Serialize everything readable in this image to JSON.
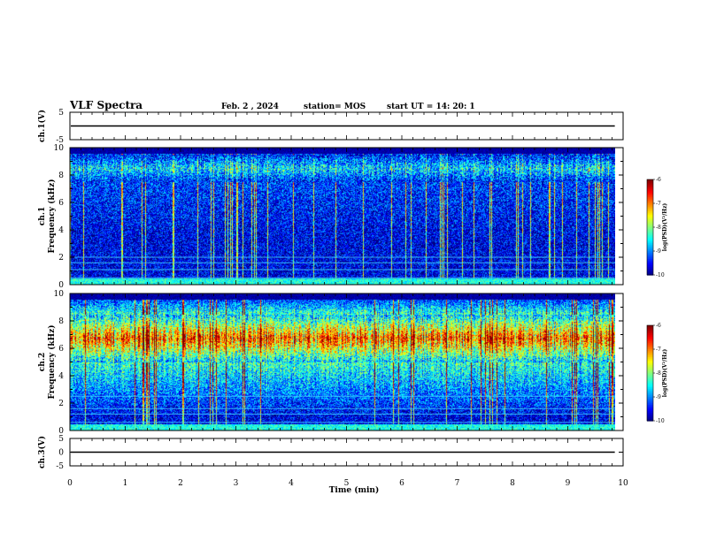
{
  "chart_data": {
    "type": "heatmap",
    "title": "VLF Spectra",
    "date": "Feb. 2  , 2024",
    "station": "station= MOS",
    "start_ut": "start  UT  =   14: 20: 1",
    "xlabel": "Time  (min)",
    "xlim": [
      0,
      10
    ],
    "x_ticks": [
      "0",
      "1",
      "2",
      "3",
      "4",
      "5",
      "6",
      "7",
      "8",
      "9",
      "10"
    ],
    "panels": [
      {
        "kind": "waveform",
        "ylabel": "ch.1(V)",
        "ylim": [
          -5,
          5
        ],
        "y_ticks": [
          "5",
          "-5"
        ],
        "baseline_value": 0
      },
      {
        "kind": "spectrogram",
        "channel": "ch.1",
        "ylabel": "Frequency (kHz)",
        "ylim": [
          0,
          10
        ],
        "y_ticks": [
          "0",
          "2",
          "4",
          "6",
          "8",
          "10"
        ],
        "data_extent_min": [
          0,
          9.85
        ],
        "emission_band_khz": [
          7.5,
          9.5
        ],
        "narrowband_lines_khz": [
          0.5,
          1.1,
          1.6,
          2.0
        ],
        "typical_log_psd": -9.2,
        "colorbar": {
          "label": "log(PSD)(V²/Hz)",
          "range": [
            -10,
            -6
          ],
          "ticks": [
            "-6",
            "-7",
            "-8",
            "-9",
            "-10"
          ]
        }
      },
      {
        "kind": "spectrogram",
        "channel": "ch.2",
        "ylabel": "Frequency (kHz)",
        "ylim": [
          0,
          10
        ],
        "y_ticks": [
          "0",
          "2",
          "4",
          "6",
          "8",
          "10"
        ],
        "data_extent_min": [
          0,
          9.85
        ],
        "emission_band_khz": [
          5.0,
          8.5
        ],
        "narrowband_lines_khz": [
          0.6,
          1.2,
          1.6,
          2.5
        ],
        "typical_log_psd": -7.0,
        "colorbar": {
          "label": "log(PSD)(V²/Hz)",
          "range": [
            -10,
            -6
          ],
          "ticks": [
            "-6",
            "-7",
            "-8",
            "-9",
            "-10"
          ]
        }
      },
      {
        "kind": "waveform",
        "ylabel": "ch.3(V)",
        "ylim": [
          -5,
          5
        ],
        "y_ticks": [
          "5",
          "0",
          "-5"
        ],
        "baseline_value": 0
      }
    ]
  }
}
